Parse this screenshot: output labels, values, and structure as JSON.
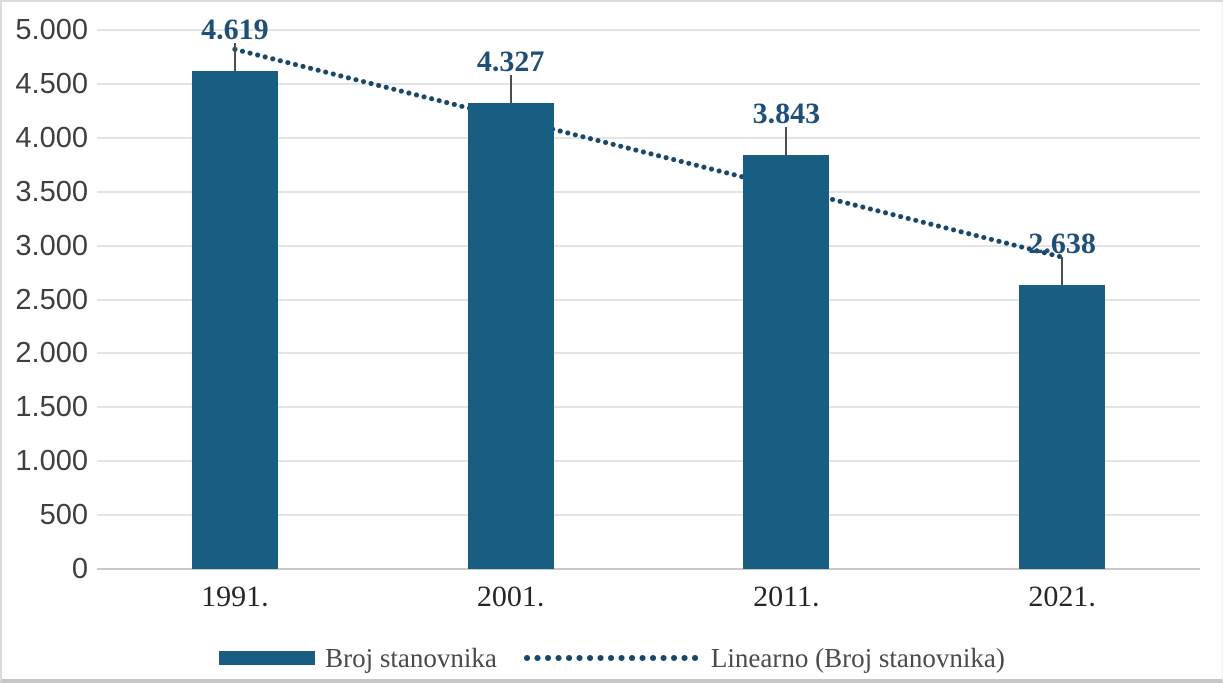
{
  "chart_data": {
    "type": "bar",
    "categories": [
      "1991.",
      "2001.",
      "2011.",
      "2021."
    ],
    "series": [
      {
        "name": "Broj stanovnika",
        "values": [
          4619,
          4327,
          3843,
          2638
        ]
      }
    ],
    "data_labels": [
      "4.619",
      "4.327",
      "3.843",
      "2.638"
    ],
    "trendline": {
      "name": "Linearno (Broj stanovnika)",
      "fit": "linear",
      "endpoint_values": [
        4820.8,
        2892.7
      ],
      "style": "dotted"
    },
    "title": "",
    "xlabel": "",
    "ylabel": "",
    "ylim": [
      0,
      5000
    ],
    "ytick_step": 500,
    "ytick_labels": [
      "0",
      "500",
      "1.000",
      "1.500",
      "2.000",
      "2.500",
      "3.000",
      "3.500",
      "4.000",
      "4.500",
      "5.000"
    ],
    "grid": true,
    "legend_position": "bottom",
    "colors": {
      "bar": "#175e82",
      "trendline": "#17486b",
      "data_label_text": "#1f4e79",
      "leader_line": "#4d4d4d",
      "y_axis_text": "#3f3f3f",
      "x_axis_text": "#262626",
      "gridline": "#e4e4e4",
      "baseline": "#c9c9c9",
      "legend_text": "#4a4a4a",
      "background": "#ffffff"
    }
  },
  "legend": {
    "items": [
      {
        "label": "Broj stanovnika",
        "swatch": "bar"
      },
      {
        "label": "Linearno (Broj stanovnika)",
        "swatch": "dotted-line"
      }
    ]
  }
}
